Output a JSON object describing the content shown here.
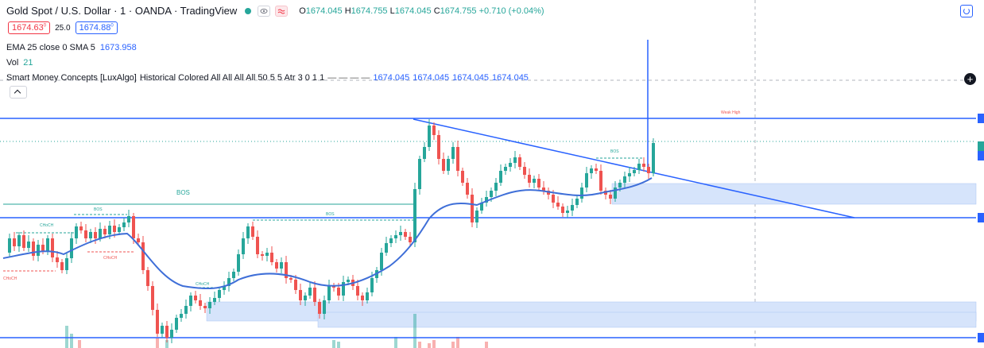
{
  "header": {
    "symbol_title": "Gold Spot / U.S. Dollar · 1 · OANDA · TradingView",
    "ohlc": {
      "o_key": "O",
      "o": "1674.045",
      "h_key": "H",
      "h": "1674.755",
      "l_key": "L",
      "l": "1674.045",
      "c_key": "C",
      "c": "1674.755",
      "change": "+0.710 (+0.04%)"
    },
    "sell_price": "1674.63",
    "sell_sup": "0",
    "spread": "25.0",
    "buy_price": "1674.88",
    "buy_sup": "0"
  },
  "indicators": {
    "ema": {
      "label": "EMA 25 close 0 SMA 5",
      "value": "1673.958"
    },
    "vol": {
      "label": "Vol",
      "value": "21"
    },
    "smc": {
      "label": "Smart Money Concepts [LuxAlgo]",
      "params": "Historical Colored All All All All 50 5 5 Atr 3 0 1 1",
      "dashes": "— — — —",
      "values": [
        "1674.045",
        "1674.045",
        "1674.045",
        "1674.045"
      ]
    }
  },
  "icons": {
    "visibility": "eye-icon",
    "settings": "color-swatch-icon",
    "time_lock": "time-lock-icon",
    "add": "plus-icon",
    "collapse": "chevron-up-icon"
  },
  "colors": {
    "up": "#26a69a",
    "down": "#ef5350",
    "line_blue": "#2962ff",
    "ema": "#3f6fd8",
    "zone": "#d6e4fb",
    "bos_label": "#26a69a",
    "choch_red": "#ef5350"
  },
  "chart_data": {
    "type": "candlestick",
    "labels": {
      "bos_big": "BOS",
      "bos_small_1": "BOS",
      "bos_small_2": "BOS",
      "bos_small_3": "BOS",
      "choch_1": "CHoCH",
      "choch_2": "CHoCH",
      "choch_3": "CHoCH",
      "choch_4": "CHoCH",
      "weak_high": "Weak High"
    }
  }
}
